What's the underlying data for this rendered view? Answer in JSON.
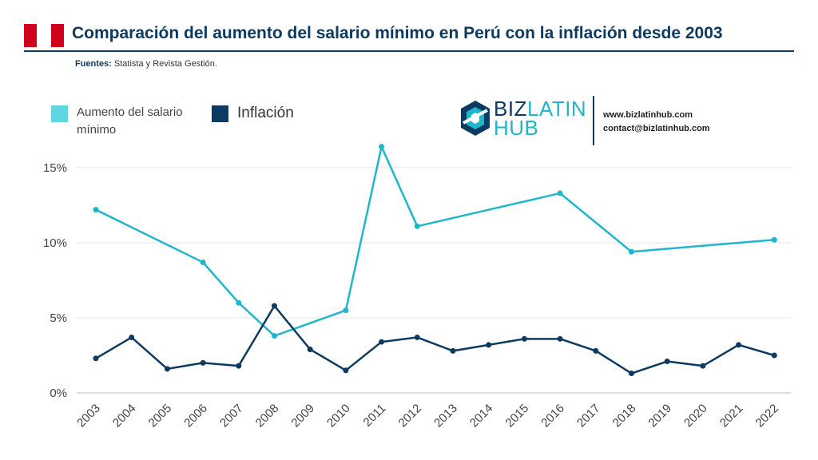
{
  "header": {
    "title": "Comparación del aumento del salario mínimo en Perú con la inflación desde 2003",
    "source_label": "Fuentes:",
    "source_text": "Statista y Revista Gestión."
  },
  "brand": {
    "logo_biz": "BIZ",
    "logo_latin": "LATIN",
    "logo_hub": "HUB",
    "website": "www.bizlatinhub.com",
    "email": "contact@bizlatinhub.com"
  },
  "colors": {
    "flag_red": "#d0021b",
    "navy": "#0d3a60",
    "teal": "#1fb6c9",
    "legend_teal": "#5fd6e0"
  },
  "chart_data": {
    "type": "line",
    "title": "Comparación del aumento del salario mínimo en Perú con la inflación desde 2003",
    "xlabel": "",
    "ylabel": "",
    "ylim": [
      0,
      17
    ],
    "yticks": [
      0,
      5,
      10,
      15
    ],
    "ytick_labels": [
      "0%",
      "5%",
      "10%",
      "15%"
    ],
    "legend_position": "top-left",
    "grid": true,
    "categories": [
      "2003",
      "2004",
      "2005",
      "2006",
      "2007",
      "2008",
      "2009",
      "2010",
      "2011",
      "2012",
      "2013",
      "2014",
      "2015",
      "2016",
      "2017",
      "2018",
      "2019",
      "2020",
      "2021",
      "2022"
    ],
    "series": [
      {
        "name": "Aumento del salario mínimo",
        "color": "#1fb6c9",
        "legend_color": "#5fd6e0",
        "values": [
          12.2,
          null,
          null,
          8.7,
          6.0,
          3.8,
          null,
          5.5,
          16.4,
          11.1,
          null,
          null,
          null,
          13.3,
          null,
          9.4,
          null,
          null,
          null,
          10.2
        ]
      },
      {
        "name": "Inflación",
        "color": "#0d3a60",
        "legend_color": "#0d3a60",
        "values": [
          2.3,
          3.7,
          1.6,
          2.0,
          1.8,
          5.8,
          2.9,
          1.5,
          3.4,
          3.7,
          2.8,
          3.2,
          3.6,
          3.6,
          2.8,
          1.3,
          2.1,
          1.8,
          3.2,
          2.5
        ]
      }
    ]
  }
}
